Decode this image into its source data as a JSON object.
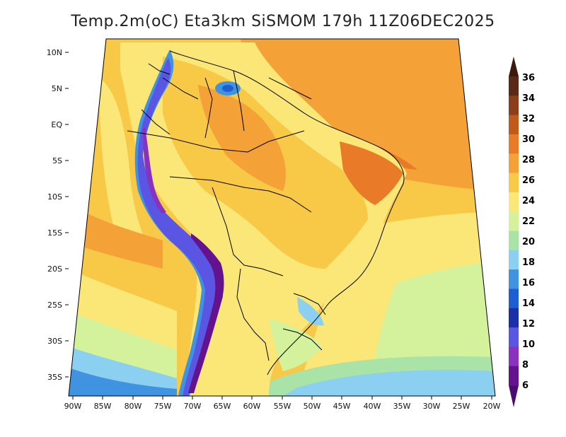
{
  "title": "Temp.2m(oC) Eta3km SiSMOM 179h 11Z06DEC2025",
  "map": {
    "lat_ticks": [
      "10N",
      "5N",
      "EQ",
      "5S",
      "10S",
      "15S",
      "20S",
      "25S",
      "30S",
      "35S"
    ],
    "lon_ticks": [
      "90W",
      "85W",
      "80W",
      "75W",
      "70W",
      "65W",
      "60W",
      "55W",
      "50W",
      "45W",
      "40W",
      "35W",
      "30W",
      "25W",
      "20W"
    ]
  },
  "colorbar": {
    "labels": [
      "36",
      "34",
      "32",
      "30",
      "28",
      "26",
      "24",
      "22",
      "20",
      "18",
      "16",
      "14",
      "12",
      "10",
      "8",
      "6"
    ],
    "colors": [
      "#5a2a16",
      "#8c3e1a",
      "#c05a1a",
      "#e97a28",
      "#f4a137",
      "#f8c847",
      "#fae777",
      "#d4f29b",
      "#a9e3a7",
      "#8cd0f1",
      "#3f93e0",
      "#1d5fd2",
      "#1a2fa8",
      "#5a55e2",
      "#8a32c0",
      "#64128e"
    ],
    "top_arrow_color": "#3a1a0c",
    "bottom_arrow_color": "#4a0c6e"
  },
  "legend_values": {
    "ocean_south": "#9bdcf2",
    "ocean_cold": "#4ea4e8"
  }
}
